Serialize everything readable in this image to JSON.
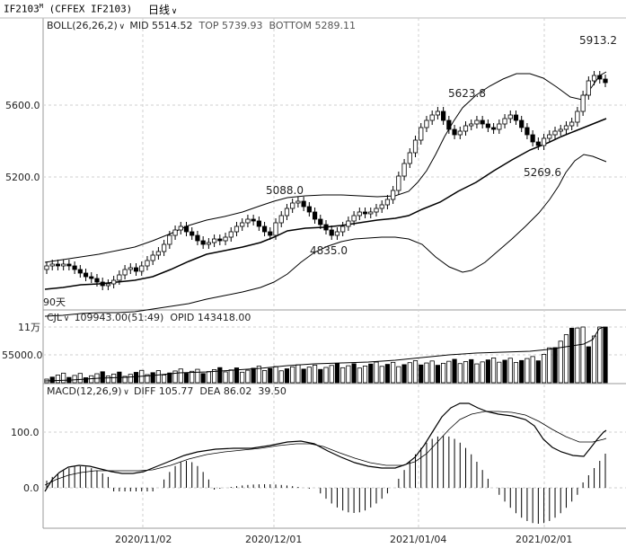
{
  "titlebar": {
    "code": "IF2103",
    "superscript": "M",
    "exchange": "(CFFEX IF2103)",
    "period": "日线"
  },
  "boll": {
    "name": "BOLL(26,26,2)",
    "mid": "MID 5514.52",
    "top": "TOP 5739.93",
    "bottom": "BOTTOM 5289.11"
  },
  "cjl": {
    "name": "CJL",
    "value": "109943.00(51:49)",
    "opid": "OPID 143418.00"
  },
  "macd": {
    "name": "MACD(12,26,9)",
    "diff": "DIFF 105.77",
    "dea": "DEA 86.02",
    "macd": "39.50"
  },
  "price_axis": {
    "labels": [
      "5600.0",
      "5200.0"
    ],
    "days_marker": "90天"
  },
  "volume_axis": {
    "labels": [
      "11万",
      "55000.0"
    ]
  },
  "macd_axis": {
    "labels": [
      "100.0",
      "0.0"
    ]
  },
  "date_axis": {
    "labels": [
      "2020/11/02",
      "2020/12/01",
      "2021/01/04",
      "2021/02/01"
    ]
  },
  "annotations": {
    "high_5913": "5913.2",
    "high_5623": "5623.8",
    "high_5088": "5088.0",
    "low_4835": "4835.0",
    "low_5269": "5269.6"
  },
  "colors": {
    "up": "#000000",
    "down": "#000000",
    "grid": "#bbbbbb",
    "axis": "#999999"
  }
}
